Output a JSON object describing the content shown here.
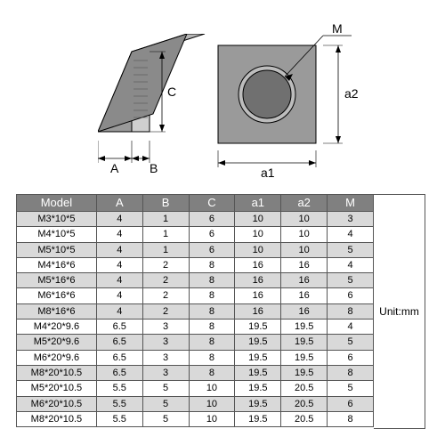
{
  "diagram": {
    "labels": {
      "A": "A",
      "B": "B",
      "C": "C",
      "a1": "a1",
      "a2": "a2",
      "M": "M"
    },
    "colors": {
      "face_light": "#cfcfcf",
      "face_mid": "#9a9a9a",
      "face_dark": "#6f6f6f",
      "hole_inner": "#707070",
      "hole_outer": "#9a9a9a",
      "stroke": "#000000",
      "dim_line": "#000000"
    }
  },
  "table": {
    "headers": [
      "Model",
      "A",
      "B",
      "C",
      "a1",
      "a2",
      "M"
    ],
    "unit_label": "Unit:mm",
    "rows": [
      [
        "M3*10*5",
        "4",
        "1",
        "6",
        "10",
        "10",
        "3"
      ],
      [
        "M4*10*5",
        "4",
        "1",
        "6",
        "10",
        "10",
        "4"
      ],
      [
        "M5*10*5",
        "4",
        "1",
        "6",
        "10",
        "10",
        "5"
      ],
      [
        "M4*16*6",
        "4",
        "2",
        "8",
        "16",
        "16",
        "4"
      ],
      [
        "M5*16*6",
        "4",
        "2",
        "8",
        "16",
        "16",
        "5"
      ],
      [
        "M6*16*6",
        "4",
        "2",
        "8",
        "16",
        "16",
        "6"
      ],
      [
        "M8*16*6",
        "4",
        "2",
        "8",
        "16",
        "16",
        "8"
      ],
      [
        "M4*20*9.6",
        "6.5",
        "3",
        "8",
        "19.5",
        "19.5",
        "4"
      ],
      [
        "M5*20*9.6",
        "6.5",
        "3",
        "8",
        "19.5",
        "19.5",
        "5"
      ],
      [
        "M6*20*9.6",
        "6.5",
        "3",
        "8",
        "19.5",
        "19.5",
        "6"
      ],
      [
        "M8*20*10.5",
        "6.5",
        "3",
        "8",
        "19.5",
        "19.5",
        "8"
      ],
      [
        "M5*20*10.5",
        "5.5",
        "5",
        "10",
        "19.5",
        "20.5",
        "5"
      ],
      [
        "M6*20*10.5",
        "5.5",
        "5",
        "10",
        "19.5",
        "20.5",
        "6"
      ],
      [
        "M8*20*10.5",
        "5.5",
        "5",
        "10",
        "19.5",
        "20.5",
        "8"
      ]
    ],
    "header_bg": "#808080",
    "header_fg": "#ffffff",
    "row_odd_bg": "#d9d9d9",
    "row_even_bg": "#ffffff",
    "border_color": "#555555",
    "font_size_header": 13,
    "font_size_cell": 11
  }
}
